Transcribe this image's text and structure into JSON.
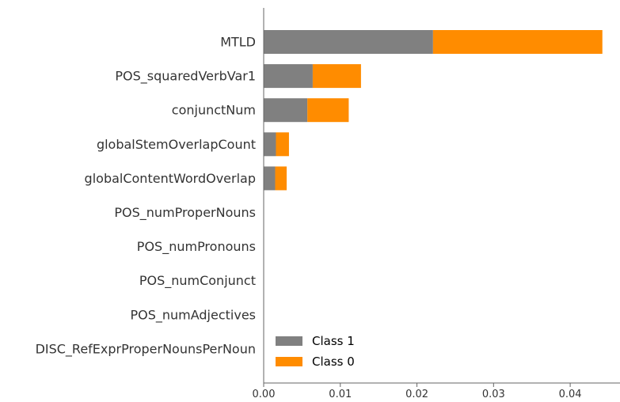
{
  "chart_data": {
    "type": "bar",
    "orientation": "horizontal",
    "stacked": true,
    "categories": [
      "MTLD",
      "POS_squaredVerbVar1",
      "conjunctNum",
      "globalStemOverlapCount",
      "globalContentWordOverlap",
      "POS_numProperNouns",
      "POS_numPronouns",
      "POS_numConjunct",
      "POS_numAdjectives",
      "DISC_RefExprProperNounsPerNoun"
    ],
    "series": [
      {
        "name": "Class 1",
        "color": "#808080",
        "values": [
          0.0221,
          0.0064,
          0.0057,
          0.0016,
          0.0015,
          0,
          0,
          0,
          0,
          0
        ]
      },
      {
        "name": "Class 0",
        "color": "#ff8c00",
        "values": [
          0.0221,
          0.0063,
          0.0054,
          0.0017,
          0.0015,
          0,
          0,
          0,
          0,
          0
        ]
      }
    ],
    "xlim": [
      0,
      0.0465
    ],
    "xticks": [
      "0.00",
      "0.01",
      "0.02",
      "0.03",
      "0.04"
    ],
    "xlabel": "",
    "ylabel": "",
    "title": "",
    "grid": false,
    "legend_position": "lower-right"
  }
}
